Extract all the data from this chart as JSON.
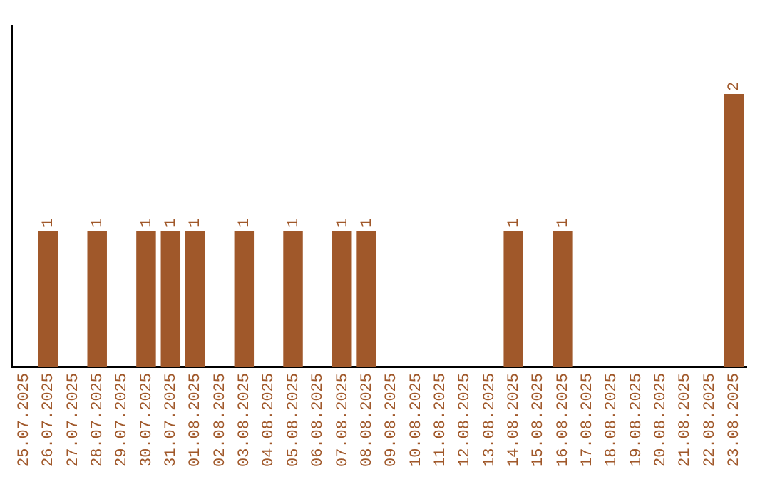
{
  "chart_data": {
    "type": "bar",
    "categories": [
      "25.07.2025",
      "26.07.2025",
      "27.07.2025",
      "28.07.2025",
      "29.07.2025",
      "30.07.2025",
      "31.07.2025",
      "01.08.2025",
      "02.08.2025",
      "03.08.2025",
      "04.08.2025",
      "05.08.2025",
      "06.08.2025",
      "07.08.2025",
      "08.08.2025",
      "09.08.2025",
      "10.08.2025",
      "11.08.2025",
      "12.08.2025",
      "13.08.2025",
      "14.08.2025",
      "15.08.2025",
      "16.08.2025",
      "17.08.2025",
      "18.08.2025",
      "19.08.2025",
      "20.08.2025",
      "21.08.2025",
      "22.08.2025",
      "23.08.2025"
    ],
    "values": [
      0,
      1,
      0,
      1,
      0,
      1,
      1,
      1,
      0,
      1,
      0,
      1,
      0,
      1,
      1,
      0,
      0,
      0,
      0,
      0,
      1,
      0,
      1,
      0,
      0,
      0,
      0,
      0,
      0,
      2
    ],
    "value_labels": [
      null,
      "1",
      null,
      "1",
      null,
      "1",
      "1",
      "1",
      null,
      "1",
      null,
      "1",
      null,
      "1",
      "1",
      null,
      null,
      null,
      null,
      null,
      "1",
      null,
      "1",
      null,
      null,
      null,
      null,
      null,
      null,
      "2"
    ],
    "color": "#a0582a",
    "tick_labels": "x",
    "grid": false,
    "legend": false
  }
}
